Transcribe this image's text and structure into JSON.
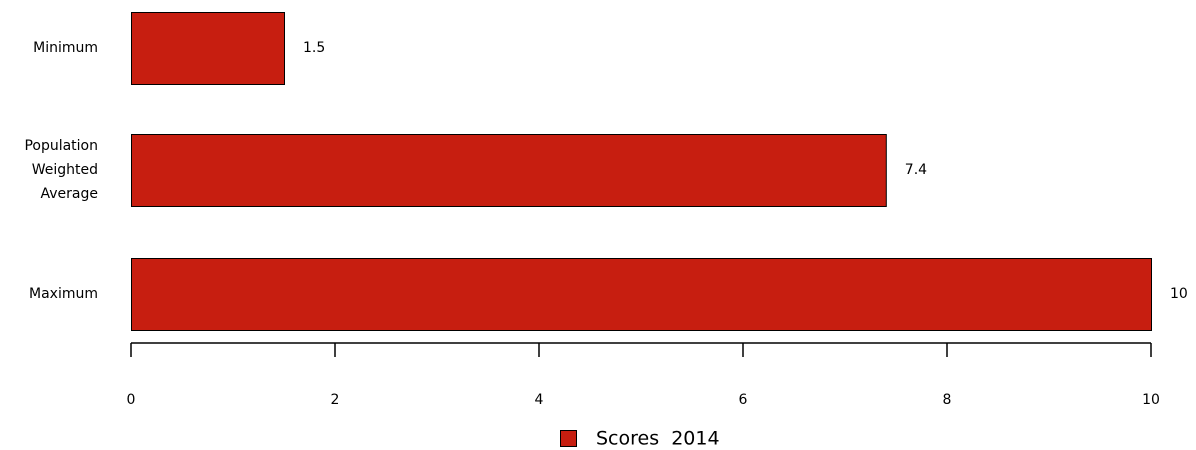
{
  "chart_data": {
    "type": "bar",
    "orientation": "horizontal",
    "categories": [
      "Minimum",
      "Population Weighted Average",
      "Maximum"
    ],
    "category_label_lines": [
      [
        "Minimum"
      ],
      [
        "Population",
        "Weighted",
        "Average"
      ],
      [
        "Maximum"
      ]
    ],
    "series": [
      {
        "name": "Scores  2014",
        "values": [
          1.5,
          7.4,
          10
        ],
        "color": "#c71e10"
      }
    ],
    "data_labels": [
      "1.5",
      "7.4",
      "10"
    ],
    "xlim": [
      0,
      10
    ],
    "xticks": [
      0,
      2,
      4,
      6,
      8,
      10
    ],
    "xtick_labels": [
      "0",
      "2",
      "4",
      "6",
      "8",
      "10"
    ],
    "grid": false,
    "legend": {
      "position": "bottom",
      "entries": [
        "Scores  2014"
      ]
    },
    "title": "",
    "xlabel": "",
    "ylabel": ""
  }
}
